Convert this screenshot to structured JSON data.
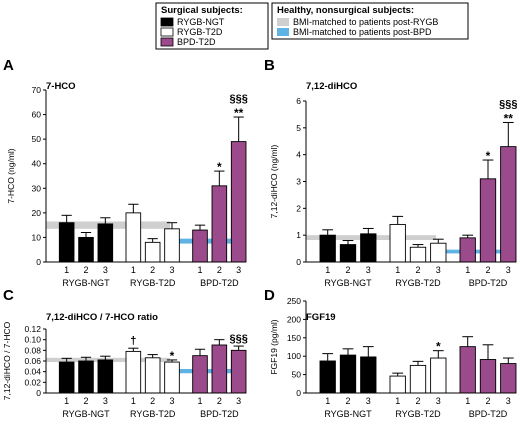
{
  "legend": {
    "surgical_title": "Surgical subjects:",
    "surgical": [
      {
        "label": "RYGB-NGT",
        "color": "#000000"
      },
      {
        "label": "RYGB-T2D",
        "color": "#ffffff"
      },
      {
        "label": "BPD-T2D",
        "color": "#9b4a8b"
      }
    ],
    "healthy_title": "Healthy, nonsurgical subjects:",
    "healthy": [
      {
        "label": "BMI-matched to patients post-RYGB",
        "color": "#cfcfcf"
      },
      {
        "label": "BMI-matched to patients post-BPD",
        "color": "#5fb3e2"
      }
    ]
  },
  "group_labels": [
    "RYGB-NGT",
    "RYGB-T2D",
    "BPD-T2D"
  ],
  "chart_data": [
    {
      "panel": "A",
      "type": "bar",
      "title": "7-HCO",
      "ylabel": "7-HCO (ng/ml)",
      "ylim": [
        0,
        70
      ],
      "yticks": [
        0,
        10,
        20,
        30,
        40,
        50,
        60,
        70
      ],
      "categories": [
        "1",
        "2",
        "3",
        "1",
        "2",
        "3",
        "1",
        "2",
        "3"
      ],
      "values": [
        16,
        10,
        15.5,
        20,
        8,
        13.5,
        13,
        31,
        49
      ],
      "errors": [
        3,
        2,
        2.5,
        3.5,
        1.5,
        2.5,
        2,
        6,
        10
      ],
      "annotations": [
        {
          "index": 7,
          "text": "*"
        },
        {
          "index": 8,
          "text": "**"
        },
        {
          "index": 8,
          "text": "§§§"
        }
      ],
      "bands": [
        {
          "color": "#cfcfcf",
          "range": [
            13.5,
            16.5
          ]
        },
        {
          "color": "#5fb3e2",
          "range": [
            7.5,
            9.5
          ]
        }
      ]
    },
    {
      "panel": "B",
      "type": "bar",
      "title": "7,12-diHCO",
      "ylabel": "7,12-diHCO (ng/ml)",
      "ylim": [
        0,
        6
      ],
      "yticks": [
        0,
        1,
        2,
        3,
        4,
        5,
        6
      ],
      "categories": [
        "1",
        "2",
        "3",
        "1",
        "2",
        "3",
        "1",
        "2",
        "3"
      ],
      "values": [
        1.0,
        0.65,
        1.05,
        1.4,
        0.55,
        0.7,
        0.9,
        3.1,
        4.3
      ],
      "errors": [
        0.2,
        0.15,
        0.2,
        0.3,
        0.1,
        0.15,
        0.1,
        0.7,
        0.9
      ],
      "annotations": [
        {
          "index": 7,
          "text": "*"
        },
        {
          "index": 8,
          "text": "**"
        },
        {
          "index": 8,
          "text": "§§§"
        }
      ],
      "bands": [
        {
          "color": "#cfcfcf",
          "range": [
            0.82,
            1.0
          ]
        },
        {
          "color": "#5fb3e2",
          "range": [
            0.32,
            0.46
          ]
        }
      ]
    },
    {
      "panel": "C",
      "type": "bar",
      "title": "7,12-diHCO / 7-HCO ratio",
      "ylabel": "7,12-diHCO / 7-HCO",
      "ylim": [
        0,
        0.12
      ],
      "yticks": [
        0,
        0.02,
        0.04,
        0.06,
        0.08,
        0.1,
        0.12
      ],
      "ytick_labels": [
        "0",
        "0.02",
        "0.04",
        "0.06",
        "0.08",
        "0.10",
        "0.12"
      ],
      "categories": [
        "1",
        "2",
        "3",
        "1",
        "2",
        "3",
        "1",
        "2",
        "3"
      ],
      "values": [
        0.058,
        0.06,
        0.062,
        0.078,
        0.066,
        0.058,
        0.07,
        0.09,
        0.08
      ],
      "errors": [
        0.007,
        0.007,
        0.007,
        0.006,
        0.006,
        0.004,
        0.012,
        0.01,
        0.008
      ],
      "annotations": [
        {
          "index": 3,
          "text": "†"
        },
        {
          "index": 5,
          "text": "*"
        },
        {
          "index": 8,
          "text": "§§§"
        }
      ],
      "bands": [
        {
          "color": "#cfcfcf",
          "range": [
            0.058,
            0.066
          ]
        },
        {
          "color": "#5fb3e2",
          "range": [
            0.037,
            0.045
          ]
        }
      ]
    },
    {
      "panel": "D",
      "type": "bar",
      "title": "FGF19",
      "ylabel": "FGF19 (pg/ml)",
      "ylim": [
        0,
        250
      ],
      "yticks": [
        0,
        50,
        100,
        150,
        200,
        250
      ],
      "categories": [
        "1",
        "2",
        "3",
        "1",
        "2",
        "3",
        "1",
        "2",
        "3"
      ],
      "values": [
        87,
        103,
        98,
        46,
        75,
        95,
        126,
        91,
        80
      ],
      "errors": [
        20,
        17,
        28,
        8,
        11,
        20,
        27,
        40,
        15
      ],
      "annotations": [
        {
          "index": 5,
          "text": "*"
        }
      ],
      "bands": []
    }
  ]
}
